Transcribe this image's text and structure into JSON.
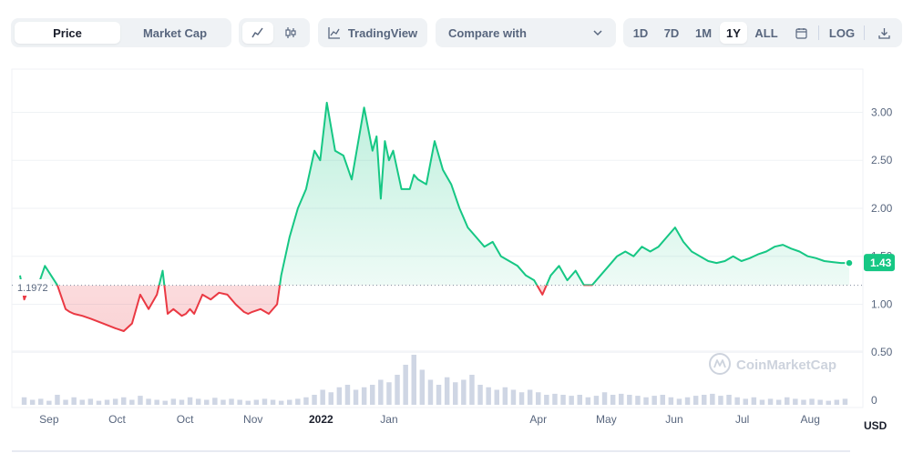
{
  "toolbar": {
    "price_tab": "Price",
    "market_cap_tab": "Market Cap",
    "line_icon": "line-chart-icon",
    "candle_icon": "candlestick-icon",
    "tradingview_label": "TradingView",
    "compare_label": "Compare with",
    "ranges": [
      "1D",
      "7D",
      "1M",
      "1Y",
      "ALL"
    ],
    "active_range": "1Y",
    "calendar_icon": "calendar-icon",
    "log_label": "LOG",
    "download_icon": "download-icon"
  },
  "watermark": "CoinMarketCap",
  "currency": "USD",
  "current_price_label": "1.43",
  "reference_label": "1.1972",
  "colors": {
    "up": "#16c784",
    "down": "#ea3943",
    "grid": "#eff2f5",
    "text": "#58667e"
  },
  "chart_data": {
    "type": "area",
    "reference_value": 1.1972,
    "y_ticks": [
      0,
      0.5,
      1.0,
      1.5,
      2.0,
      2.5,
      3.0
    ],
    "y_tick_labels": [
      "0",
      "0.50",
      "1.00",
      "1.50",
      "2.00",
      "2.50",
      "3.00"
    ],
    "ylim": [
      0,
      3.45
    ],
    "x_tick_labels": [
      "Sep",
      "Oct",
      "Oct",
      "Nov",
      "2022",
      "Jan",
      "Apr",
      "May",
      "Jun",
      "Jul",
      "Aug"
    ],
    "x_tick_positions": [
      0.035,
      0.117,
      0.199,
      0.281,
      0.363,
      0.445,
      0.625,
      0.707,
      0.789,
      0.871,
      0.953
    ],
    "x_tick_strong": [
      false,
      false,
      false,
      false,
      true,
      false,
      false,
      false,
      false,
      false,
      false
    ],
    "series": [
      {
        "x": [
          0,
          0.005,
          0.012,
          0.02,
          0.03,
          0.045,
          0.055,
          0.06,
          0.065,
          0.075,
          0.085,
          0.1,
          0.115,
          0.125,
          0.135,
          0.145,
          0.155,
          0.165,
          0.172,
          0.178,
          0.185,
          0.195,
          0.2,
          0.205,
          0.21,
          0.22,
          0.23,
          0.24,
          0.25,
          0.26,
          0.27,
          0.275,
          0.28,
          0.29,
          0.3,
          0.31,
          0.315,
          0.325,
          0.335,
          0.345,
          0.355,
          0.362,
          0.37,
          0.38,
          0.39,
          0.4,
          0.41,
          0.415,
          0.425,
          0.43,
          0.435,
          0.44,
          0.445,
          0.45,
          0.46,
          0.47,
          0.475,
          0.48,
          0.49,
          0.5,
          0.51,
          0.52,
          0.53,
          0.54,
          0.55,
          0.56,
          0.57,
          0.58,
          0.59,
          0.6,
          0.61,
          0.62,
          0.63,
          0.64,
          0.65,
          0.66,
          0.67,
          0.68,
          0.69,
          0.7,
          0.71,
          0.72,
          0.73,
          0.74,
          0.75,
          0.76,
          0.77,
          0.78,
          0.79,
          0.8,
          0.81,
          0.82,
          0.83,
          0.84,
          0.85,
          0.86,
          0.87,
          0.88,
          0.89,
          0.9,
          0.91,
          0.92,
          0.93,
          0.94,
          0.95,
          0.96,
          0.97,
          0.98,
          0.99,
          1.0
        ],
        "values": [
          1.3,
          1.05,
          1.2,
          1.15,
          1.4,
          1.2,
          0.95,
          0.92,
          0.9,
          0.88,
          0.85,
          0.8,
          0.75,
          0.72,
          0.8,
          1.1,
          0.95,
          1.1,
          1.35,
          0.9,
          0.95,
          0.88,
          0.9,
          0.95,
          0.9,
          1.1,
          1.05,
          1.12,
          1.1,
          1.0,
          0.92,
          0.9,
          0.92,
          0.95,
          0.9,
          1.0,
          1.3,
          1.7,
          2.0,
          2.2,
          2.6,
          2.5,
          3.1,
          2.6,
          2.55,
          2.3,
          2.8,
          3.05,
          2.6,
          2.75,
          2.1,
          2.7,
          2.5,
          2.6,
          2.2,
          2.2,
          2.35,
          2.3,
          2.25,
          2.7,
          2.4,
          2.25,
          2.0,
          1.8,
          1.7,
          1.6,
          1.65,
          1.5,
          1.45,
          1.4,
          1.3,
          1.25,
          1.1,
          1.3,
          1.4,
          1.25,
          1.35,
          1.2,
          1.2,
          1.3,
          1.4,
          1.5,
          1.55,
          1.5,
          1.6,
          1.55,
          1.6,
          1.7,
          1.8,
          1.65,
          1.55,
          1.5,
          1.45,
          1.43,
          1.45,
          1.5,
          1.45,
          1.48,
          1.52,
          1.55,
          1.6,
          1.62,
          1.58,
          1.55,
          1.5,
          1.48,
          1.45,
          1.44,
          1.43,
          1.43
        ]
      }
    ],
    "volume_relative": [
      0.15,
      0.1,
      0.12,
      0.08,
      0.2,
      0.1,
      0.15,
      0.1,
      0.12,
      0.08,
      0.1,
      0.12,
      0.15,
      0.1,
      0.18,
      0.12,
      0.1,
      0.08,
      0.12,
      0.1,
      0.15,
      0.12,
      0.1,
      0.14,
      0.1,
      0.12,
      0.1,
      0.08,
      0.1,
      0.12,
      0.1,
      0.08,
      0.1,
      0.12,
      0.15,
      0.2,
      0.3,
      0.25,
      0.35,
      0.4,
      0.3,
      0.35,
      0.4,
      0.5,
      0.45,
      0.6,
      0.8,
      1.0,
      0.7,
      0.5,
      0.4,
      0.55,
      0.45,
      0.5,
      0.6,
      0.4,
      0.35,
      0.3,
      0.35,
      0.3,
      0.25,
      0.3,
      0.25,
      0.2,
      0.22,
      0.2,
      0.18,
      0.2,
      0.15,
      0.18,
      0.25,
      0.2,
      0.22,
      0.2,
      0.18,
      0.15,
      0.18,
      0.2,
      0.15,
      0.12,
      0.15,
      0.18,
      0.2,
      0.22,
      0.18,
      0.2,
      0.15,
      0.12,
      0.15,
      0.1,
      0.12,
      0.1,
      0.15,
      0.12,
      0.1,
      0.12,
      0.1,
      0.08,
      0.1,
      0.12
    ]
  }
}
